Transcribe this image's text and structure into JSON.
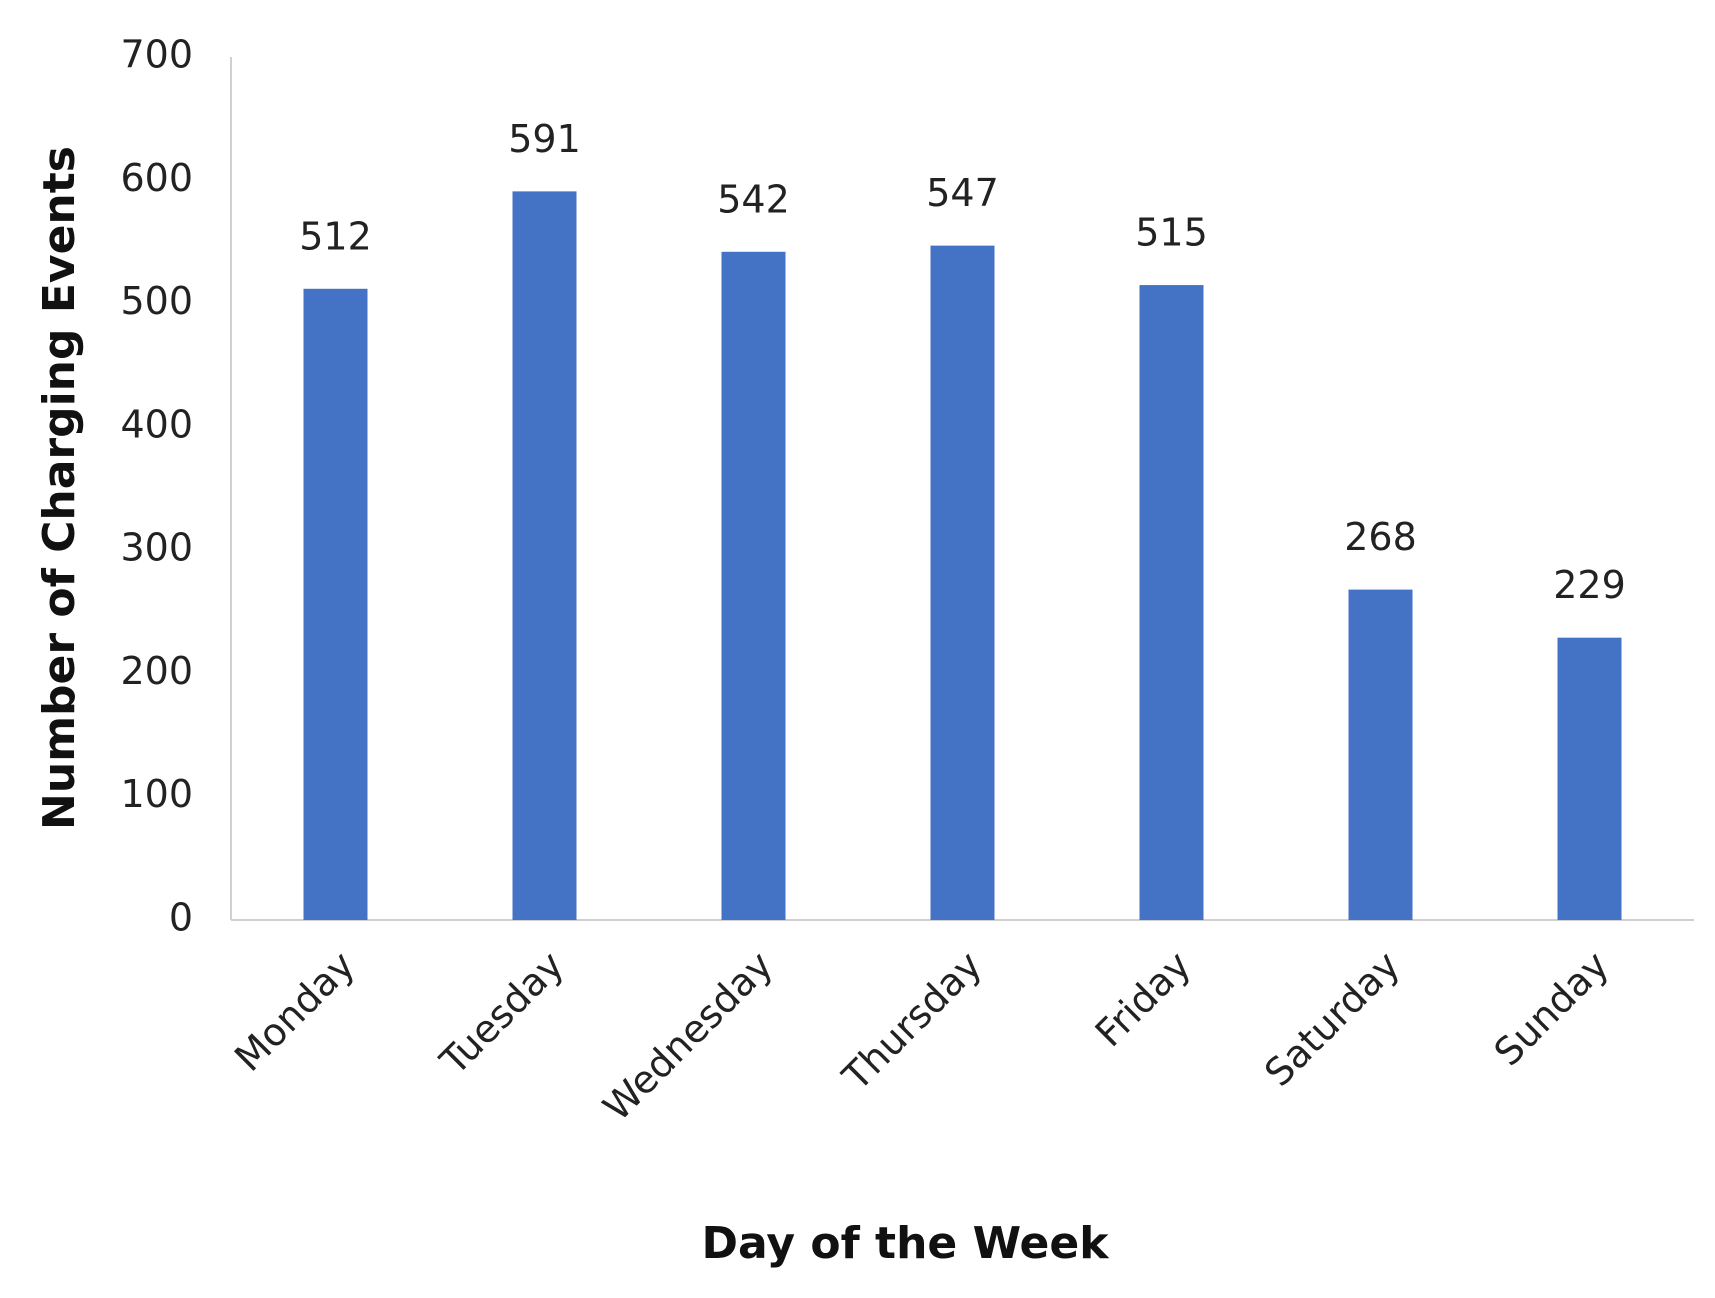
{
  "chart_data": {
    "type": "bar",
    "x_label": "Day of the Week",
    "y_label": "Number of Charging Events",
    "categories": [
      "Monday",
      "Tuesday",
      "Wednesday",
      "Thursday",
      "Friday",
      "Saturday",
      "Sunday"
    ],
    "values": [
      512,
      591,
      542,
      547,
      515,
      268,
      229
    ],
    "color": "#4472c4",
    "ylim": [
      0,
      700
    ],
    "yticks": [
      0,
      100,
      200,
      300,
      400,
      500,
      600,
      700
    ],
    "grid": false
  }
}
